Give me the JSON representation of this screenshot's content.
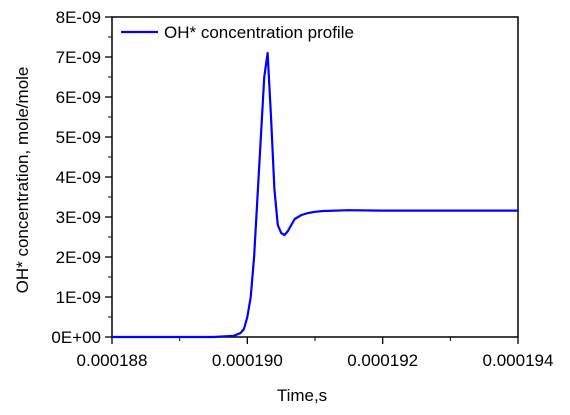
{
  "colors": {
    "series_line": "#0000ff",
    "axis": "#000000",
    "background": "#ffffff"
  },
  "chart_data": {
    "type": "line",
    "title": "",
    "xlabel": "Time,s",
    "ylabel": "OH* concentration, mole/mole",
    "xlim": [
      0.000188,
      0.000194
    ],
    "ylim": [
      0,
      8e-09
    ],
    "x_ticks": [
      0.000188,
      0.00019,
      0.000192,
      0.000194
    ],
    "x_tick_labels": [
      "0.000188",
      "0.000190",
      "0.000192",
      "0.000194"
    ],
    "y_ticks": [
      0,
      1e-09,
      2e-09,
      3e-09,
      4e-09,
      5e-09,
      6e-09,
      7e-09,
      8e-09
    ],
    "y_tick_labels": [
      "0E+00",
      "1E-09",
      "2E-09",
      "3E-09",
      "4E-09",
      "5E-09",
      "6E-09",
      "7E-09",
      "8E-09"
    ],
    "grid": false,
    "legend": {
      "placement": "top-left",
      "entries": [
        "OH* concentration profile"
      ]
    },
    "series": [
      {
        "name": "OH* concentration profile",
        "x": [
          0.000188,
          0.000189,
          0.0001895,
          0.0001898,
          0.0001899,
          0.00018995,
          0.00019,
          0.00019005,
          0.0001901,
          0.00019015,
          0.0001902,
          0.00019025,
          0.0001903,
          0.00019035,
          0.0001904,
          0.00019045,
          0.0001905,
          0.00019055,
          0.0001906,
          0.00019065,
          0.0001907,
          0.0001908,
          0.0001909,
          0.000191,
          0.000191125,
          0.0001915,
          0.000192,
          0.000193,
          0.000194
        ],
        "y": [
          0,
          0,
          0,
          3e-11,
          1e-10,
          2e-10,
          5e-10,
          1e-09,
          2e-09,
          3.5e-09,
          5e-09,
          6.5e-09,
          7.1e-09,
          5.5e-09,
          3.7e-09,
          2.8e-09,
          2.6e-09,
          2.55e-09,
          2.65e-09,
          2.8e-09,
          2.95e-09,
          3.05e-09,
          3.1e-09,
          3.13e-09,
          3.15e-09,
          3.17e-09,
          3.16e-09,
          3.16e-09,
          3.16e-09
        ]
      }
    ]
  }
}
